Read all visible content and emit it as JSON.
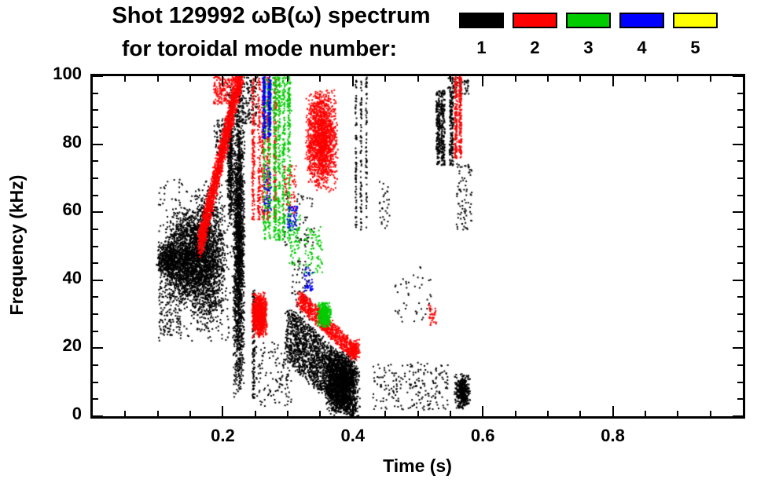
{
  "header": {
    "title_line1": "Shot 129992 ωB(ω) spectrum",
    "title_line2": "for toroidal mode number:"
  },
  "legend": {
    "modes": [
      {
        "label": "1",
        "color": "#000000"
      },
      {
        "label": "2",
        "color": "#ff0000"
      },
      {
        "label": "3",
        "color": "#00cc00"
      },
      {
        "label": "4",
        "color": "#0000ff"
      },
      {
        "label": "5",
        "color": "#ffff00"
      }
    ]
  },
  "chart_data": {
    "type": "scatter",
    "title": "Shot 129992 ωB(ω) spectrum for toroidal mode number:",
    "xlabel": "Time (s)",
    "ylabel": "Frequency (kHz)",
    "xlim": [
      0.0,
      1.0
    ],
    "ylim": [
      0,
      100
    ],
    "xticks": [
      {
        "v": 0.2,
        "label": "0.2"
      },
      {
        "v": 0.4,
        "label": "0.4"
      },
      {
        "v": 0.6,
        "label": "0.6"
      },
      {
        "v": 0.8,
        "label": "0.8"
      }
    ],
    "yticks": [
      {
        "v": 0,
        "label": "0"
      },
      {
        "v": 20,
        "label": "20"
      },
      {
        "v": 40,
        "label": "40"
      },
      {
        "v": 60,
        "label": "60"
      },
      {
        "v": 80,
        "label": "80"
      },
      {
        "v": 100,
        "label": "100"
      }
    ],
    "x_minor_step": 0.05,
    "y_minor_step": 5,
    "grid": false,
    "legend_position": "top-right",
    "seed": 20129992,
    "modes": [
      {
        "mode": 1,
        "color": "#000000",
        "features": [
          {
            "kind": "cloud",
            "t": [
              0.095,
              0.135
            ],
            "f": [
              40,
              52
            ],
            "n": 450
          },
          {
            "kind": "dots",
            "t": [
              0.1,
              0.135
            ],
            "f": [
              24,
              40
            ],
            "n": 130
          },
          {
            "kind": "cloud",
            "t": [
              0.11,
              0.175
            ],
            "f": [
              32,
              62
            ],
            "n": 1500
          },
          {
            "kind": "cloud",
            "t": [
              0.145,
              0.205
            ],
            "f": [
              25,
              68
            ],
            "n": 1600
          },
          {
            "kind": "dots",
            "t": [
              0.1,
              0.215
            ],
            "f": [
              22,
              70
            ],
            "n": 300
          },
          {
            "kind": "dots",
            "t": [
              0.185,
              0.205
            ],
            "f": [
              76,
              88
            ],
            "n": 70
          },
          {
            "kind": "cloud",
            "t": [
              0.205,
              0.216
            ],
            "f": [
              55,
              100
            ],
            "n": 420
          },
          {
            "kind": "cloud",
            "t": [
              0.214,
              0.233
            ],
            "f": [
              4,
              100
            ],
            "n": 1900
          },
          {
            "kind": "dots",
            "t": [
              0.222,
              0.252
            ],
            "f": [
              86,
              100
            ],
            "n": 150
          },
          {
            "kind": "streaks",
            "t": [
              0.243,
              0.252
            ],
            "f": [
              5,
              38
            ],
            "cols": 1,
            "cw": 0.004,
            "n": 130
          },
          {
            "kind": "dots",
            "t": [
              0.25,
              0.305
            ],
            "f": [
              3,
              22
            ],
            "n": 130
          },
          {
            "kind": "dots",
            "t": [
              0.29,
              0.34
            ],
            "f": [
              50,
              66
            ],
            "n": 60
          },
          {
            "kind": "dots",
            "t": [
              0.305,
              0.335
            ],
            "f": [
              28,
              46
            ],
            "n": 80
          },
          {
            "kind": "diag",
            "t": [
              0.3,
              0.405
            ],
            "f": [
              24,
              6
            ],
            "jt": 0.012,
            "jf": 16,
            "n": 2000
          },
          {
            "kind": "cloud",
            "t": [
              0.355,
              0.405
            ],
            "f": [
              0,
              20
            ],
            "n": 1300
          },
          {
            "kind": "streaks",
            "t": [
              0.4,
              0.422
            ],
            "f": [
              55,
              100
            ],
            "cols": 3,
            "cw": 0.002,
            "n": 210
          },
          {
            "kind": "dots",
            "t": [
              0.44,
              0.456
            ],
            "f": [
              55,
              70
            ],
            "n": 30
          },
          {
            "kind": "dots",
            "t": [
              0.43,
              0.545
            ],
            "f": [
              2,
              16
            ],
            "n": 210
          },
          {
            "kind": "dots",
            "t": [
              0.46,
              0.52
            ],
            "f": [
              28,
              45
            ],
            "n": 45
          },
          {
            "kind": "streaks",
            "t": [
              0.523,
              0.556
            ],
            "f": [
              74,
              96
            ],
            "cols": 3,
            "cw": 0.006,
            "n": 520
          },
          {
            "kind": "dots",
            "t": [
              0.545,
              0.578
            ],
            "f": [
              95,
              100
            ],
            "n": 70
          },
          {
            "kind": "dots",
            "t": [
              0.558,
              0.582
            ],
            "f": [
              55,
              75
            ],
            "n": 80
          },
          {
            "kind": "cloud",
            "t": [
              0.555,
              0.58
            ],
            "f": [
              2,
              13
            ],
            "n": 380
          }
        ]
      },
      {
        "mode": 2,
        "color": "#ff0000",
        "features": [
          {
            "kind": "diag",
            "t": [
              0.163,
              0.228
            ],
            "f": [
              50,
              102
            ],
            "jt": 0.007,
            "jf": 8,
            "n": 1900
          },
          {
            "kind": "dots",
            "t": [
              0.185,
              0.218
            ],
            "f": [
              92,
              100
            ],
            "n": 180
          },
          {
            "kind": "streaks",
            "t": [
              0.242,
              0.282
            ],
            "f": [
              58,
              100
            ],
            "cols": 5,
            "cw": 0.004,
            "n": 750
          },
          {
            "kind": "dots",
            "t": [
              0.292,
              0.312
            ],
            "f": [
              58,
              74
            ],
            "n": 70
          },
          {
            "kind": "cloud",
            "t": [
              0.243,
              0.268
            ],
            "f": [
              23,
              37
            ],
            "n": 850
          },
          {
            "kind": "cloud",
            "t": [
              0.325,
              0.376
            ],
            "f": [
              66,
              97
            ],
            "n": 1700
          },
          {
            "kind": "diag",
            "t": [
              0.315,
              0.402
            ],
            "f": [
              35,
              19
            ],
            "jt": 0.007,
            "jf": 5,
            "n": 800
          },
          {
            "kind": "cloud",
            "t": [
              0.395,
              0.41
            ],
            "f": [
              17,
              23
            ],
            "n": 120
          },
          {
            "kind": "dots",
            "t": [
              0.515,
              0.527
            ],
            "f": [
              27,
              33
            ],
            "n": 35
          },
          {
            "kind": "streaks",
            "t": [
              0.552,
              0.57
            ],
            "f": [
              76,
              100
            ],
            "cols": 2,
            "cw": 0.004,
            "n": 320
          }
        ]
      },
      {
        "mode": 3,
        "color": "#00cc00",
        "features": [
          {
            "kind": "streaks",
            "t": [
              0.258,
              0.306
            ],
            "f": [
              52,
              100
            ],
            "cols": 6,
            "cw": 0.004,
            "n": 950
          },
          {
            "kind": "dots",
            "t": [
              0.262,
              0.305
            ],
            "f": [
              90,
              100
            ],
            "n": 90
          },
          {
            "kind": "dots",
            "t": [
              0.3,
              0.318
            ],
            "f": [
              44,
              60
            ],
            "n": 70
          },
          {
            "kind": "dots",
            "t": [
              0.325,
              0.352
            ],
            "f": [
              42,
              56
            ],
            "n": 80
          },
          {
            "kind": "cloud",
            "t": [
              0.344,
              0.366
            ],
            "f": [
              26,
              34
            ],
            "n": 380
          }
        ]
      },
      {
        "mode": 4,
        "color": "#0000ff",
        "features": [
          {
            "kind": "streaks",
            "t": [
              0.256,
              0.278
            ],
            "f": [
              82,
              100
            ],
            "cols": 2,
            "cw": 0.004,
            "n": 280
          },
          {
            "kind": "dots",
            "t": [
              0.262,
              0.274
            ],
            "f": [
              60,
              74
            ],
            "n": 45
          },
          {
            "kind": "dots",
            "t": [
              0.298,
              0.314
            ],
            "f": [
              55,
              62
            ],
            "n": 50
          },
          {
            "kind": "dots",
            "t": [
              0.324,
              0.338
            ],
            "f": [
              37,
              44
            ],
            "n": 40
          }
        ]
      },
      {
        "mode": 5,
        "color": "#ffff00",
        "features": []
      }
    ]
  }
}
